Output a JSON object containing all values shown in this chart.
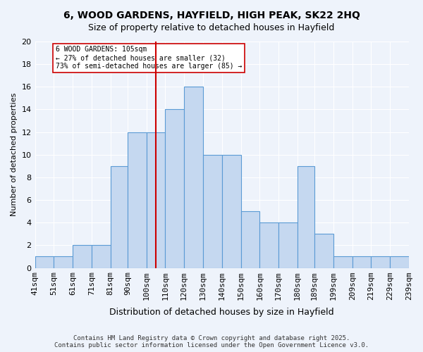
{
  "title": "6, WOOD GARDENS, HAYFIELD, HIGH PEAK, SK22 2HQ",
  "subtitle": "Size of property relative to detached houses in Hayfield",
  "xlabel": "Distribution of detached houses by size in Hayfield",
  "ylabel": "Number of detached properties",
  "bins": [
    41,
    51,
    61,
    71,
    81,
    90,
    100,
    110,
    120,
    130,
    140,
    150,
    160,
    170,
    180,
    189,
    199,
    209,
    219,
    229,
    239
  ],
  "counts": [
    1,
    1,
    2,
    2,
    9,
    12,
    12,
    14,
    16,
    10,
    10,
    5,
    4,
    4,
    9,
    3,
    1,
    1,
    1,
    1
  ],
  "bar_color": "#c5d8f0",
  "bar_edge_color": "#5b9bd5",
  "reference_line_x": 105,
  "reference_line_color": "#cc0000",
  "annotation_text": "6 WOOD GARDENS: 105sqm\n← 27% of detached houses are smaller (32)\n73% of semi-detached houses are larger (85) →",
  "annotation_box_color": "#ffffff",
  "annotation_box_edge_color": "#cc0000",
  "ylim": [
    0,
    20
  ],
  "yticks": [
    0,
    2,
    4,
    6,
    8,
    10,
    12,
    14,
    16,
    18,
    20
  ],
  "tick_labels": [
    "41sqm",
    "51sqm",
    "61sqm",
    "71sqm",
    "81sqm",
    "90sqm",
    "100sqm",
    "110sqm",
    "120sqm",
    "130sqm",
    "140sqm",
    "150sqm",
    "160sqm",
    "170sqm",
    "180sqm",
    "189sqm",
    "199sqm",
    "209sqm",
    "219sqm",
    "229sqm",
    "239sqm"
  ],
  "bg_color": "#eef3fb",
  "footer_text": "Contains HM Land Registry data © Crown copyright and database right 2025.\nContains public sector information licensed under the Open Government Licence v3.0.",
  "grid_color": "#ffffff"
}
